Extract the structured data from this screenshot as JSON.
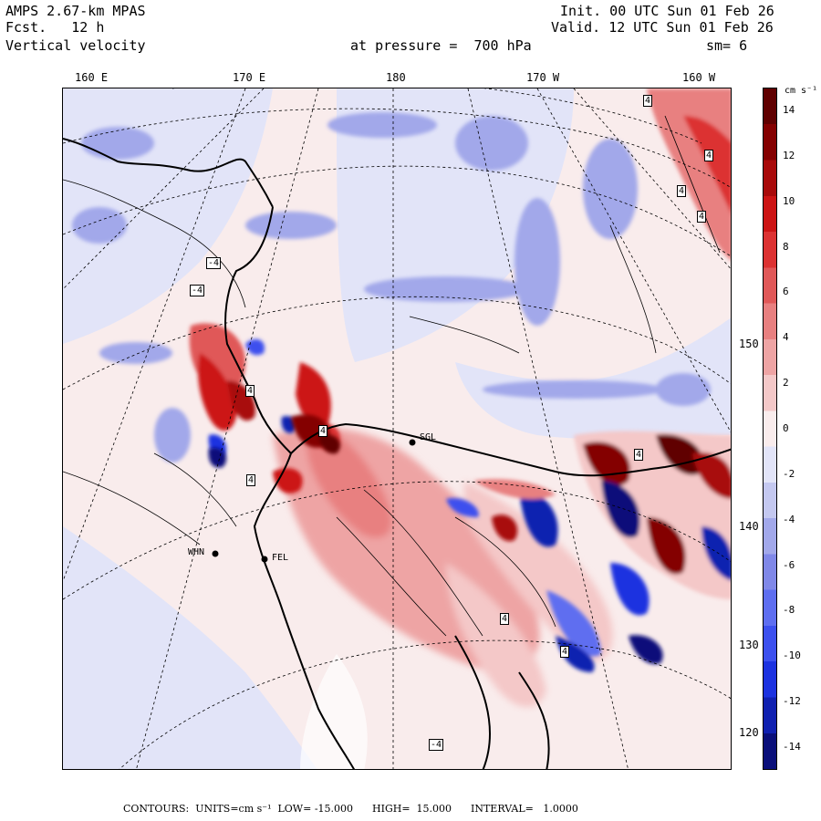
{
  "header": {
    "model": "AMPS 2.67-km MPAS",
    "forecast": "Fcst.   12 h",
    "variable": "Vertical velocity",
    "init": "Init. 00 UTC Sun 01 Feb 26",
    "valid": "Valid. 12 UTC Sun 01 Feb 26",
    "level": "at pressure =  700 hPa",
    "smoothing": "sm= 6"
  },
  "longitude_labels": [
    "160 E",
    "170 E",
    "180",
    "170 W",
    "160 W"
  ],
  "latitude_labels": [
    "150 W",
    "140 W",
    "130 W",
    "120 W"
  ],
  "colorbar": {
    "unit": "cm s⁻¹",
    "ticks": [
      "14",
      "12",
      "10",
      "8",
      "6",
      "4",
      "2",
      "0",
      "-2",
      "-4",
      "-6",
      "-8",
      "-10",
      "-12",
      "-14"
    ],
    "range": [
      -15,
      15
    ],
    "colors": [
      "#0a0f7a",
      "#1020b0",
      "#1c32e0",
      "#3c50ee",
      "#5e6ef0",
      "#8088e8",
      "#a2a8ea",
      "#c4c8f0",
      "#e2e4f8",
      "#f9ecec",
      "#f4c8c8",
      "#eea4a4",
      "#e88080",
      "#e05858",
      "#dc3232",
      "#cc1414",
      "#a80a0a",
      "#840000",
      "#600000"
    ]
  },
  "stations": [
    "WHN",
    "FEL",
    "SGL"
  ],
  "contour_labels": [
    "4",
    "4",
    "4",
    "4",
    "4",
    "4",
    "4",
    "4",
    "4",
    "4",
    "-4",
    "-4",
    "-4"
  ],
  "footer": {
    "contours": "CONTOURS:  UNITS=cm s⁻¹  LOW= -15.000      HIGH=  15.000      INTERVAL=   1.0000"
  }
}
